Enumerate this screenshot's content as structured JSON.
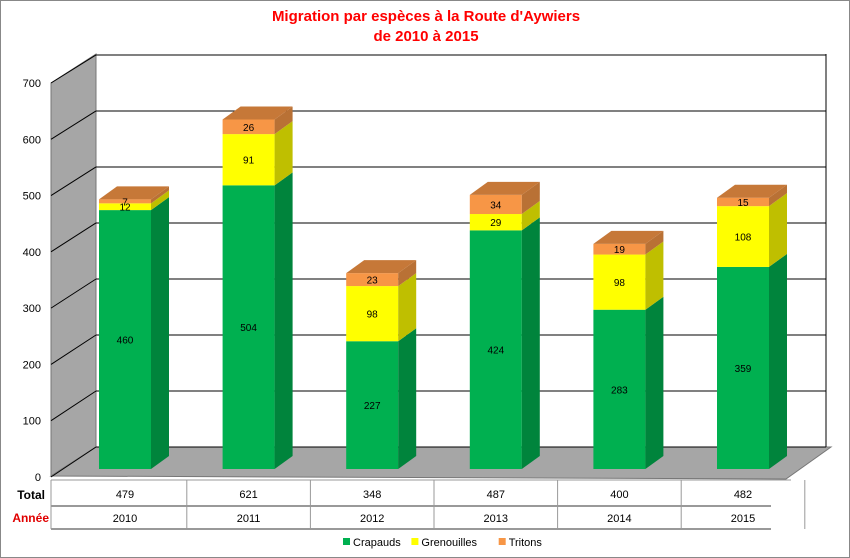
{
  "chart_data": {
    "type": "bar",
    "stacked": true,
    "three_d": true,
    "title": "Migration par espèces à la Route d'Aywiers",
    "subtitle": "de 2010 à 2015",
    "categories": [
      "2010",
      "2011",
      "2012",
      "2013",
      "2014",
      "2015"
    ],
    "series": [
      {
        "name": "Crapauds",
        "color": "#00b050",
        "values": [
          460,
          504,
          227,
          424,
          283,
          359
        ]
      },
      {
        "name": "Grenouilles",
        "color": "#ffff00",
        "values": [
          12,
          91,
          98,
          29,
          98,
          108
        ]
      },
      {
        "name": "Tritons",
        "color": "#f79646",
        "values": [
          7,
          26,
          23,
          34,
          19,
          15
        ]
      }
    ],
    "yticks": [
      "0",
      "100",
      "200",
      "300",
      "400",
      "500",
      "600",
      "700"
    ],
    "ylim": [
      0,
      700
    ],
    "grid": true,
    "legend": "bottom",
    "table": {
      "total_label": "Total",
      "year_label": "Année",
      "totals": [
        "479",
        "621",
        "348",
        "487",
        "400",
        "482"
      ]
    },
    "title_color": "#ff0000"
  }
}
